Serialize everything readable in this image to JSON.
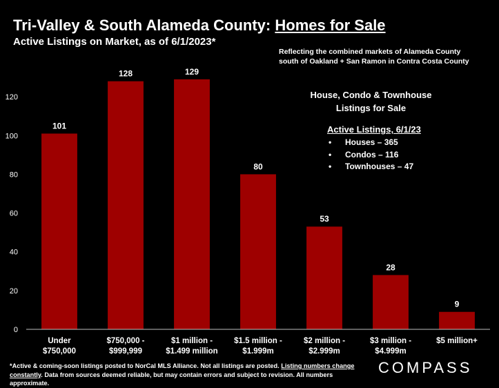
{
  "header": {
    "title_prefix": "Tri-Valley & South Alameda County: ",
    "title_underlined": "Homes for Sale",
    "subtitle": "Active Listings on Market, as of 6/1/2023*"
  },
  "note": {
    "line1": "Reflecting  the  combined markets of Alameda County",
    "line2": "south of Oakland + San Ramon in Contra Costa County"
  },
  "legend_box": {
    "title_line1": "House, Condo & Townhouse",
    "title_line2": "Listings for Sale",
    "heading": "Active Listings, 6/1/23",
    "items": [
      "Houses – 365",
      "Condos – 116",
      "Townhouses – 47"
    ]
  },
  "footer": {
    "text_a": "*Active & coming-soon listings posted to NorCal MLS Alliance. Not all listings are posted. ",
    "text_underlined": "Listing numbers change constantly",
    "text_b": ". Data from sources deemed reliable, but may contain errors and subject to revision. All numbers approximate."
  },
  "logo": "COMPASS",
  "colors": {
    "bar": "#9e0000",
    "background": "#000000",
    "text": "#ffffff"
  },
  "chart_data": {
    "type": "bar",
    "categories": [
      [
        "Under",
        "$750,000"
      ],
      [
        "$750,000 -",
        "$999,999"
      ],
      [
        "$1 million -",
        "$1.499 million"
      ],
      [
        "$1.5 million -",
        "$1.999m"
      ],
      [
        "$2 million -",
        "$2.999m"
      ],
      [
        "$3 million -",
        "$4.999m"
      ],
      [
        "$5 million+"
      ]
    ],
    "values": [
      101,
      128,
      129,
      80,
      53,
      28,
      9
    ],
    "data_labels": [
      "101",
      "128",
      "129",
      "80",
      "53",
      "28",
      "9"
    ],
    "ylim": [
      0,
      140
    ],
    "yticks": [
      0,
      20,
      40,
      60,
      80,
      100,
      120
    ],
    "grid": false,
    "xlabel": "",
    "ylabel": ""
  }
}
